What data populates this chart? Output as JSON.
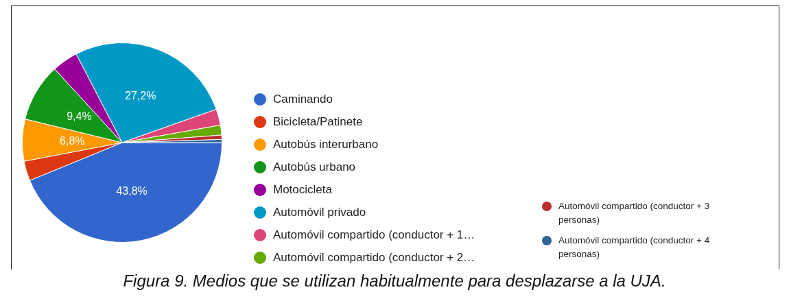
{
  "chart_data": {
    "type": "pie",
    "categories": [
      "Caminando",
      "Bicicleta/Patinete",
      "Autobús interurbano",
      "Autobús urbano",
      "Motocicleta",
      "Automóvil privado",
      "Automóvil compartido (conductor + 1…",
      "Automóvil compartido (conductor + 2…",
      "Automóvil compartido (conductor + 3 personas)",
      "Automóvil compartido (conductor + 4 personas)"
    ],
    "values": [
      43.8,
      3.2,
      6.8,
      9.4,
      4.2,
      27.2,
      2.6,
      1.6,
      0.7,
      0.5
    ],
    "value_labels": [
      "43,8%",
      null,
      "6,8%",
      "9,4%",
      null,
      "27,2%",
      null,
      null,
      null,
      null
    ],
    "colors": [
      "#3366cc",
      "#dc3912",
      "#ff9900",
      "#109618",
      "#990099",
      "#0099c6",
      "#dd4477",
      "#66aa00",
      "#b82e2e",
      "#316395"
    ],
    "legend": "right",
    "annotations": [
      "Figura 9. Medios que se utilizan habitualmente para desplazarse a la UJA."
    ]
  }
}
